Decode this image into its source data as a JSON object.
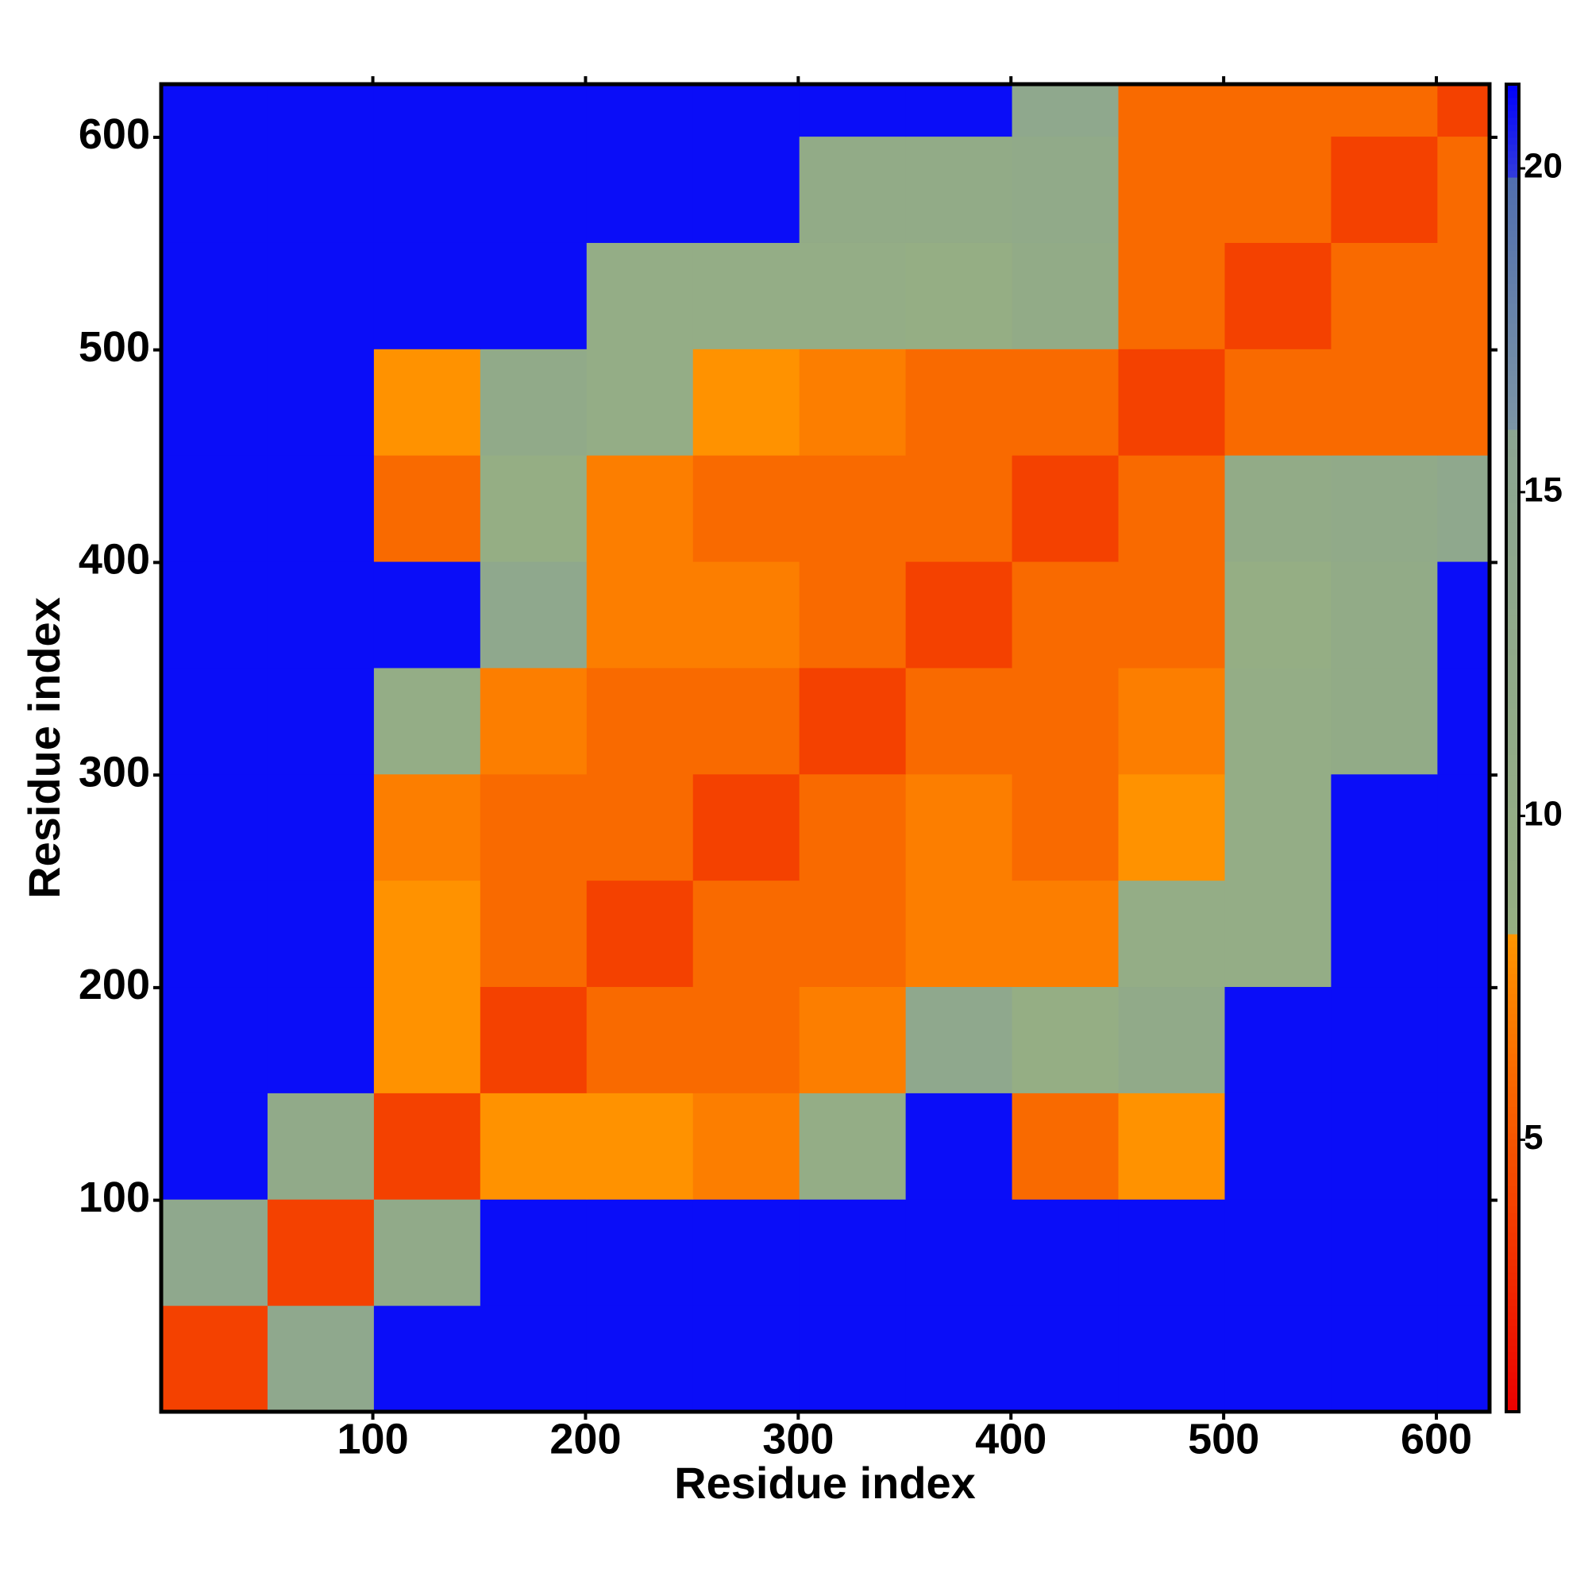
{
  "chart_data": {
    "type": "heatmap",
    "x_label": "Residue index",
    "y_label": "Residue index",
    "xlim": [
      0.5,
      625
    ],
    "ylim": [
      0.5,
      625
    ],
    "xticks": [
      100,
      200,
      300,
      400,
      500,
      600
    ],
    "yticks": [
      100,
      200,
      300,
      400,
      500,
      600
    ],
    "xbins": [
      0.5,
      50.5,
      100.5,
      150.5,
      200.5,
      250.5,
      300.5,
      350.5,
      400.5,
      450.5,
      500.5,
      550.5,
      600.5,
      625
    ],
    "ybins": [
      0.5,
      50.5,
      100.5,
      150.5,
      200.5,
      250.5,
      300.5,
      350.5,
      400.5,
      450.5,
      500.5,
      550.5,
      600.5,
      625
    ],
    "values": [
      [
        4,
        14,
        21,
        21,
        21,
        21,
        21,
        21,
        21,
        21,
        21,
        21,
        21
      ],
      [
        14,
        4,
        12,
        21,
        21,
        21,
        21,
        21,
        21,
        21,
        21,
        21,
        21
      ],
      [
        21,
        12,
        4,
        8,
        8,
        7,
        10,
        21,
        6,
        8,
        21,
        21,
        21
      ],
      [
        21,
        21,
        8,
        4,
        6,
        6,
        7,
        14,
        9,
        12,
        21,
        21,
        21
      ],
      [
        21,
        21,
        8,
        6,
        4,
        6,
        6,
        7,
        7,
        10,
        10,
        21,
        21
      ],
      [
        21,
        21,
        7,
        6,
        6,
        4,
        6,
        7,
        6,
        8,
        10,
        21,
        21
      ],
      [
        21,
        21,
        10,
        7,
        6,
        6,
        4,
        6,
        6,
        7,
        10,
        11,
        21
      ],
      [
        21,
        21,
        21,
        14,
        7,
        7,
        6,
        4,
        6,
        6,
        9,
        11,
        21
      ],
      [
        21,
        21,
        6,
        9,
        7,
        6,
        6,
        6,
        4,
        6,
        11,
        12,
        14
      ],
      [
        21,
        21,
        8,
        12,
        10,
        8,
        7,
        6,
        6,
        4,
        6,
        6,
        6
      ],
      [
        21,
        21,
        21,
        21,
        10,
        10,
        10,
        9,
        11,
        6,
        4,
        6,
        6
      ],
      [
        21,
        21,
        21,
        21,
        21,
        21,
        11,
        11,
        12,
        6,
        6,
        4,
        6
      ],
      [
        21,
        21,
        21,
        21,
        21,
        21,
        21,
        21,
        14,
        6,
        6,
        6,
        4
      ]
    ],
    "clim": [
      0.8,
      21.3
    ],
    "cticks": [
      5,
      10,
      15,
      20
    ]
  }
}
